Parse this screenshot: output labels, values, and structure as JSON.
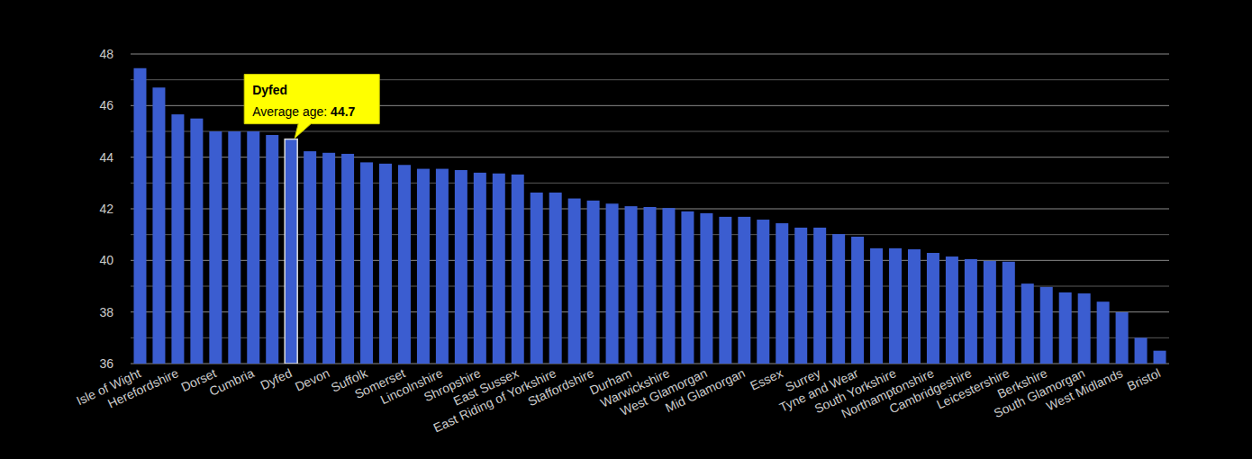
{
  "chart_data": {
    "type": "bar",
    "categories": [
      "Isle of Wight",
      null,
      "Herefordshire",
      null,
      "Dorset",
      null,
      "Cumbria",
      null,
      "Dyfed",
      null,
      "Devon",
      null,
      "Suffolk",
      null,
      "Somerset",
      null,
      "Lincolnshire",
      null,
      "Shropshire",
      null,
      "East Sussex",
      null,
      "East Riding of Yorkshire",
      null,
      "Staffordshire",
      null,
      "Durham",
      null,
      "Warwickshire",
      null,
      "West Glamorgan",
      null,
      "Mid Glamorgan",
      null,
      "Essex",
      null,
      "Surrey",
      null,
      "Tyne and Wear",
      null,
      "South Yorkshire",
      null,
      "Northamptonshire",
      null,
      "Cambridgeshire",
      null,
      "Leicestershire",
      null,
      "Berkshire",
      null,
      "South Glamorgan",
      null,
      "West Midlands",
      null,
      "Bristol"
    ],
    "values": [
      47.45,
      46.7,
      45.66,
      45.5,
      45.0,
      45.0,
      45.0,
      44.86,
      44.7,
      44.23,
      44.17,
      44.13,
      43.8,
      43.75,
      43.7,
      43.55,
      43.55,
      43.5,
      43.4,
      43.37,
      43.33,
      42.63,
      42.63,
      42.4,
      42.32,
      42.2,
      42.1,
      42.07,
      42.03,
      41.9,
      41.83,
      41.69,
      41.69,
      41.58,
      41.44,
      41.27,
      41.27,
      41.02,
      40.92,
      40.47,
      40.47,
      40.43,
      40.29,
      40.15,
      40.05,
      39.98,
      39.95,
      39.1,
      38.97,
      38.76,
      38.72,
      38.4,
      37.99,
      37.0,
      36.5
    ],
    "color": "#3b5dd0",
    "ylim": [
      36,
      48
    ],
    "yticks": [
      36,
      38,
      40,
      42,
      44,
      46,
      48
    ],
    "grid": true,
    "annotation": {
      "category": "Dyfed",
      "text": "Average age:",
      "value": 44.7
    }
  }
}
